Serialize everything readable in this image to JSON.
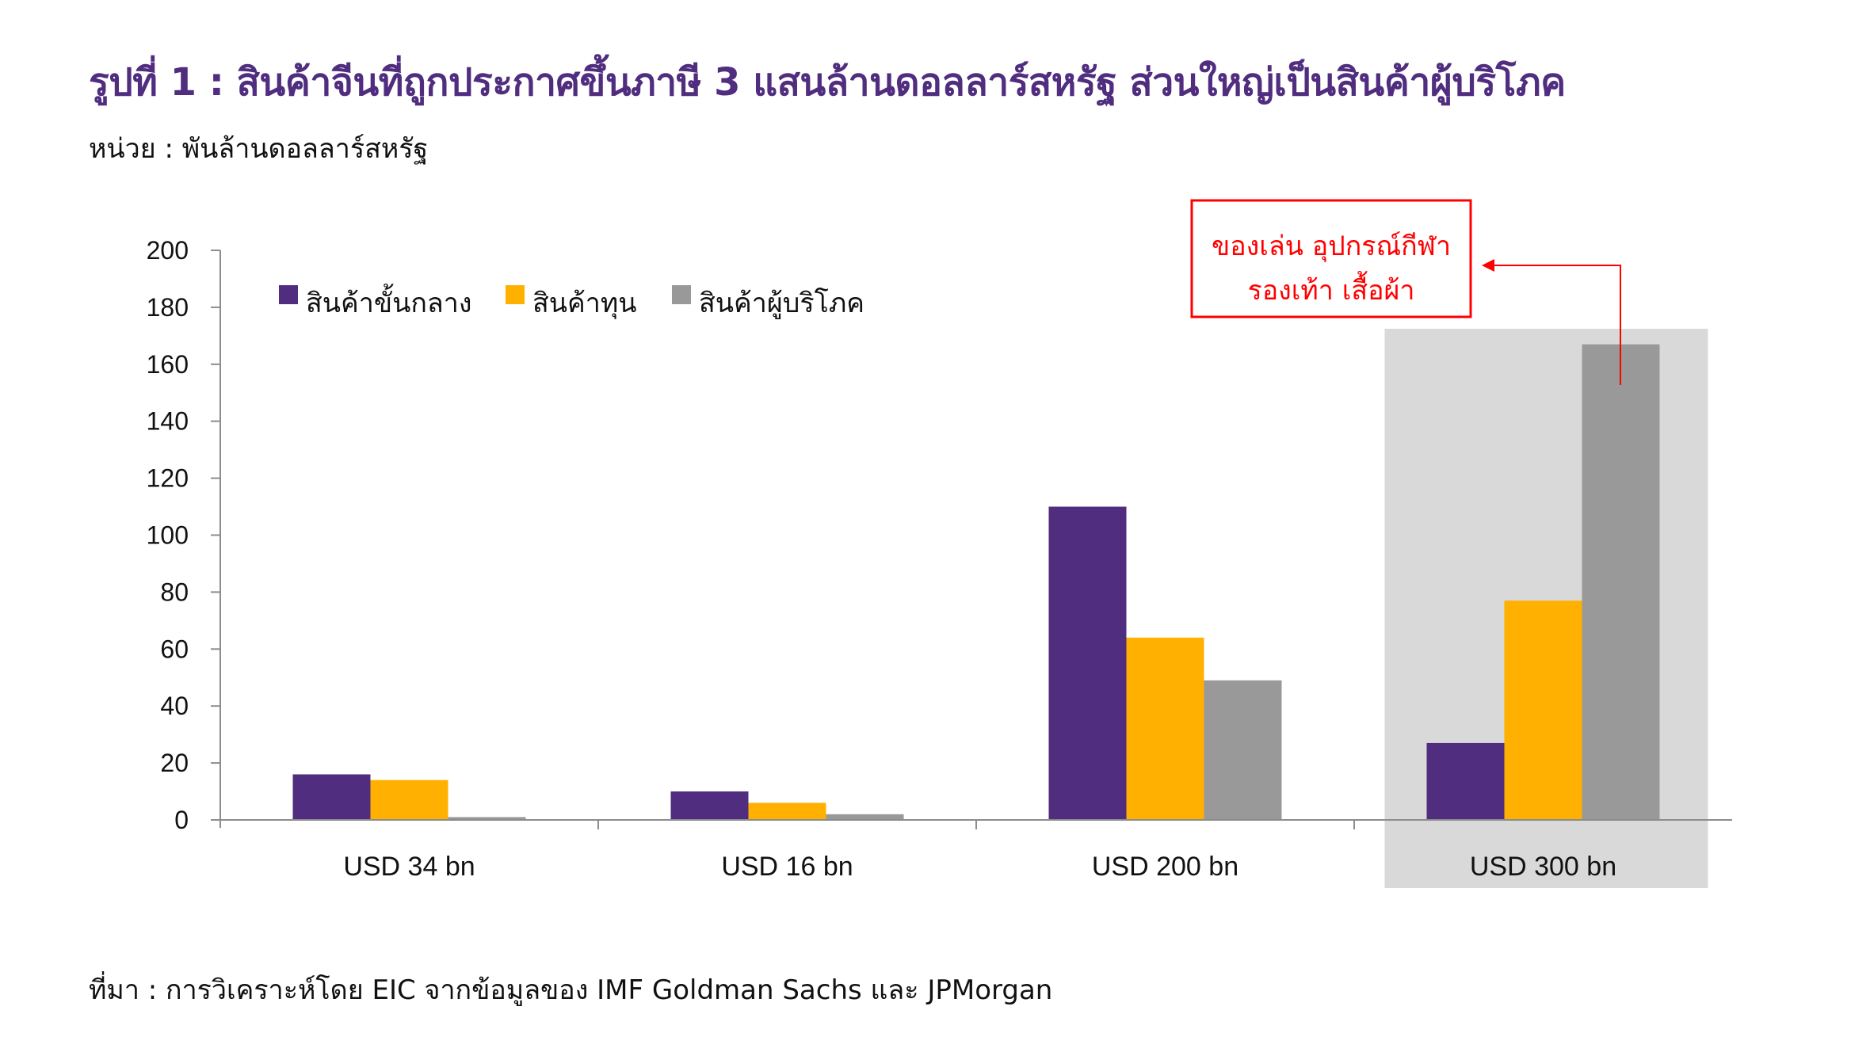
{
  "title": "รูปที่ 1 : สินค้าจีนที่ถูกประกาศขึ้นภาษี 3 แสนล้านดอลลาร์สหรัฐ ส่วนใหญ่เป็นสินค้าผู้บริโภค",
  "unit": "หน่วย : พันล้านดอลลาร์สหรัฐ",
  "source": "ที่มา : การวิเคราะห์โดย EIC จากข้อมูลของ IMF Goldman Sachs และ JPMorgan",
  "annotation": {
    "lines": [
      "ของเล่น อุปกรณ์กีฬา",
      "รองเท้า เสื้อผ้า"
    ],
    "color": "#ff0000"
  },
  "colors": {
    "title": "#502D7F",
    "highlight_band": "#D9D9D9",
    "axis": "#8C8C8C"
  },
  "chart_data": {
    "type": "bar",
    "categories": [
      "USD 34 bn",
      "USD 16 bn",
      "USD 200 bn",
      "USD 300 bn"
    ],
    "series": [
      {
        "name": "สินค้าขั้นกลาง",
        "color": "#502D7F",
        "values": [
          16,
          10,
          110,
          27
        ]
      },
      {
        "name": "สินค้าทุน",
        "color": "#FFB000",
        "values": [
          14,
          6,
          64,
          77
        ]
      },
      {
        "name": "สินค้าผู้บริโภค",
        "color": "#999999",
        "values": [
          1,
          2,
          49,
          167
        ]
      }
    ],
    "ylim": [
      0,
      200
    ],
    "yticks": [
      0,
      20,
      40,
      60,
      80,
      100,
      120,
      140,
      160,
      180,
      200
    ],
    "highlight_category": "USD 300 bn",
    "legend_position": "top-left",
    "grid": false
  }
}
